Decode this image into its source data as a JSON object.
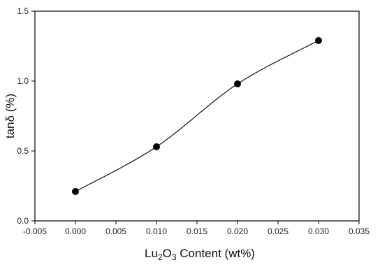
{
  "chart_data": {
    "type": "line",
    "title": "",
    "xlabel": {
      "parts": [
        {
          "text": "Lu",
          "style": "normal"
        },
        {
          "text": "2",
          "style": "sub"
        },
        {
          "text": "O",
          "style": "normal"
        },
        {
          "text": "3",
          "style": "sub"
        },
        {
          "text": " Content (wt%)",
          "style": "normal"
        }
      ]
    },
    "ylabel": "tanδ (%)",
    "xlim": [
      -0.005,
      0.035
    ],
    "ylim": [
      0.0,
      1.5
    ],
    "x_ticks": [
      -0.005,
      0.0,
      0.005,
      0.01,
      0.015,
      0.02,
      0.025,
      0.03,
      0.035
    ],
    "x_tick_labels": [
      "-0.005",
      "0.000",
      "0.005",
      "0.010",
      "0.015",
      "0.020",
      "0.025",
      "0.030",
      "0.035"
    ],
    "y_ticks": [
      0.0,
      0.5,
      1.0,
      1.5
    ],
    "y_tick_labels": [
      "0.0",
      "0.5",
      "1.0",
      "1.5"
    ],
    "grid": false,
    "legend": "none",
    "series": [
      {
        "x": [
          0.0,
          0.01,
          0.02,
          0.03
        ],
        "y": [
          0.21,
          0.53,
          0.98,
          1.29
        ],
        "marker": "circle",
        "color": "#000000"
      }
    ]
  }
}
